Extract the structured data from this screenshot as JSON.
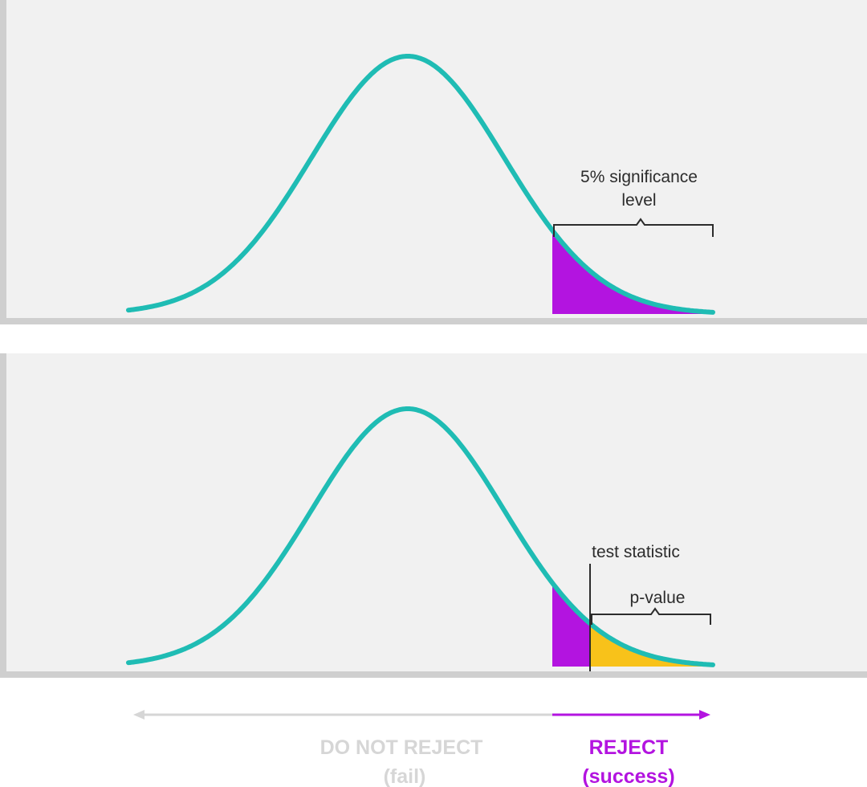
{
  "colors": {
    "panel": "#f1f1f1",
    "axis": "#cfcfcf",
    "curve": "#1fbcb4",
    "alpha_region": "#b314e0",
    "p_region": "#f8c21a",
    "muted_text": "#d6d6d6",
    "reject_text": "#b314e0",
    "label_text": "#2c2c2c"
  },
  "top_panel": {
    "significance_label_line1": "5% significance",
    "significance_label_line2": "level"
  },
  "bottom_panel": {
    "test_statistic_label": "test statistic",
    "p_value_label": "p-value"
  },
  "decision": {
    "do_not_reject": "DO NOT REJECT",
    "do_not_reject_sub": "(fail)",
    "reject": "REJECT",
    "reject_sub": "(success)"
  }
}
